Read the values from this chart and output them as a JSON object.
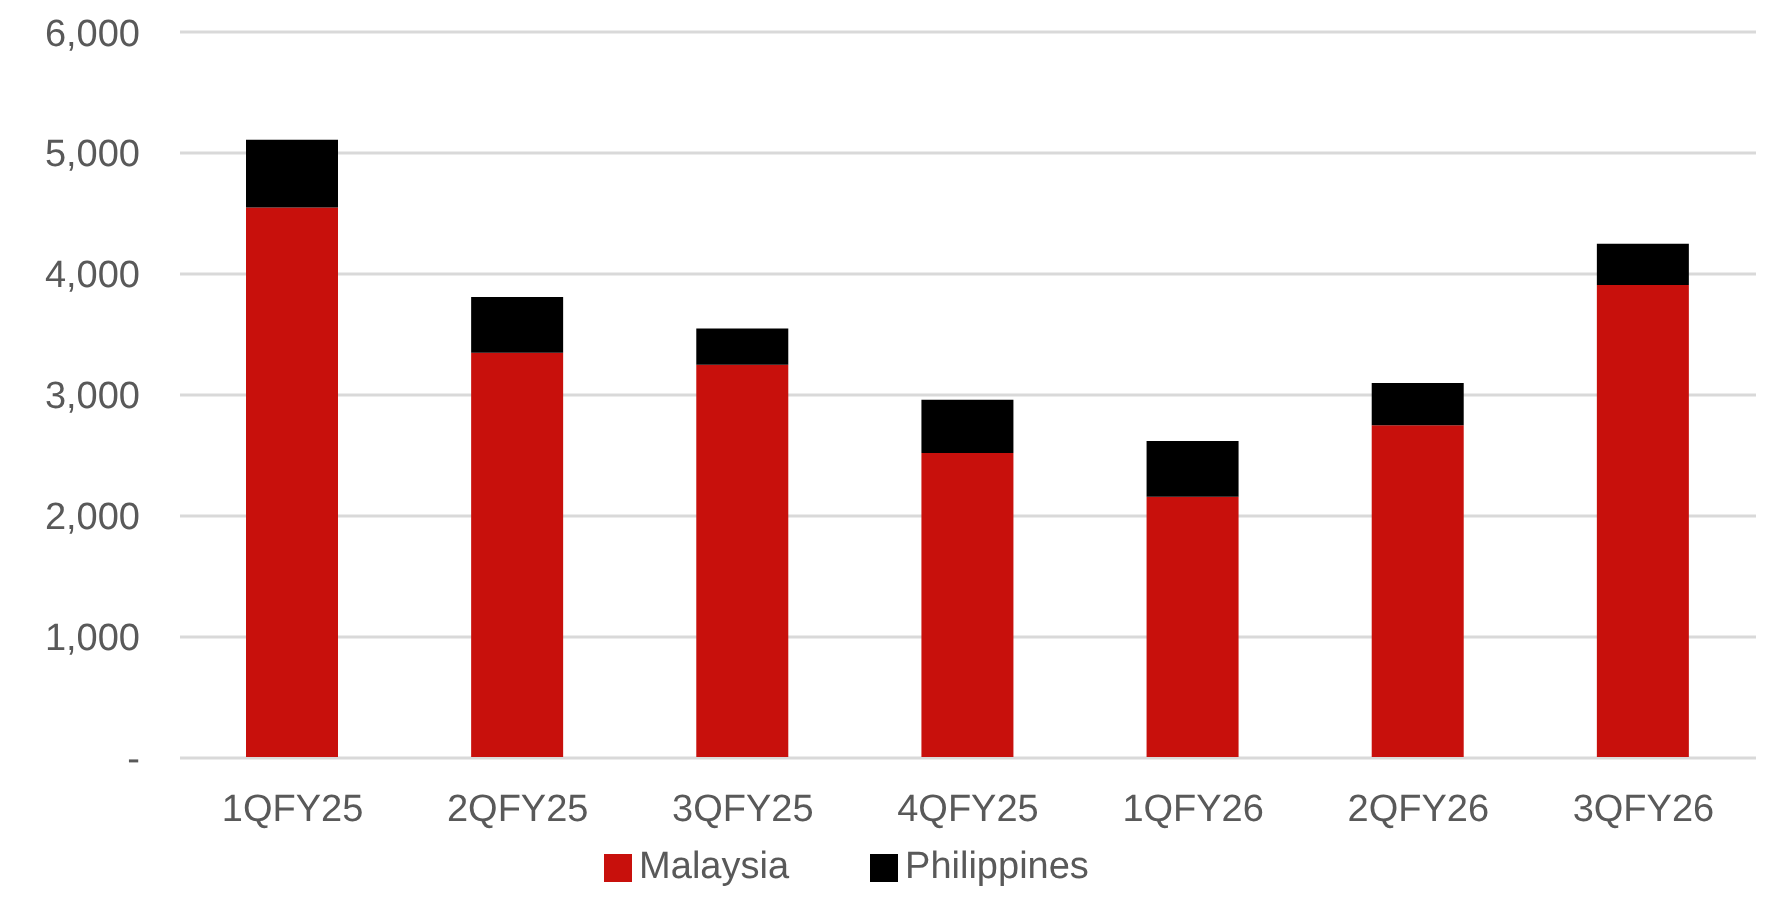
{
  "chart_data": {
    "type": "bar",
    "stacked": true,
    "categories": [
      "1QFY25",
      "2QFY25",
      "3QFY25",
      "4QFY25",
      "1QFY26",
      "2QFY26",
      "3QFY26"
    ],
    "series": [
      {
        "name": "Malaysia",
        "color": "#c8100c",
        "values": [
          4550,
          3350,
          3250,
          2520,
          2160,
          2750,
          3910
        ]
      },
      {
        "name": "Philippines",
        "color": "#000000",
        "values": [
          560,
          460,
          300,
          440,
          460,
          350,
          340
        ]
      }
    ],
    "ylim": [
      0,
      6000
    ],
    "yticks": [
      {
        "value": 0,
        "label": "-"
      },
      {
        "value": 1000,
        "label": "1,000"
      },
      {
        "value": 2000,
        "label": "2,000"
      },
      {
        "value": 3000,
        "label": "3,000"
      },
      {
        "value": 4000,
        "label": "4,000"
      },
      {
        "value": 5000,
        "label": "5,000"
      },
      {
        "value": 6000,
        "label": "6,000"
      }
    ],
    "grid": "y",
    "legend": "bottom"
  }
}
